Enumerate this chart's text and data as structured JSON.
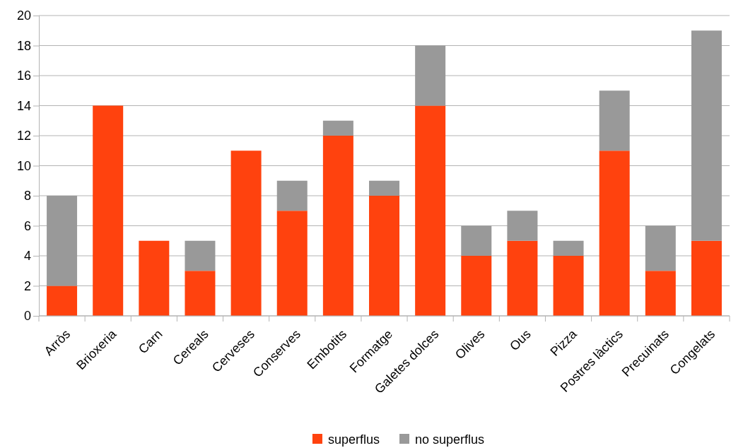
{
  "chart_data": {
    "type": "bar",
    "stacked": true,
    "categories": [
      "Arròs",
      "Brioxeria",
      "Carn",
      "Cereals",
      "Cerveses",
      "Conserves",
      "Embotits",
      "Formatge",
      "Galetes dolces",
      "Olives",
      "Ous",
      "Pizza",
      "Postres làctics",
      "Precuinats",
      "Congelats"
    ],
    "series": [
      {
        "name": "superflus",
        "color": "#ff420e",
        "values": [
          2,
          14,
          5,
          3,
          11,
          7,
          12,
          8,
          14,
          4,
          5,
          4,
          11,
          3,
          5
        ]
      },
      {
        "name": "no superflus",
        "color": "#999999",
        "values": [
          6,
          0,
          0,
          2,
          0,
          2,
          1,
          1,
          4,
          2,
          2,
          1,
          4,
          3,
          14
        ]
      }
    ],
    "ylim": [
      0,
      20
    ],
    "yticks": [
      0,
      2,
      4,
      6,
      8,
      10,
      12,
      14,
      16,
      18,
      20
    ],
    "grid": "y",
    "legend": "bottom"
  }
}
